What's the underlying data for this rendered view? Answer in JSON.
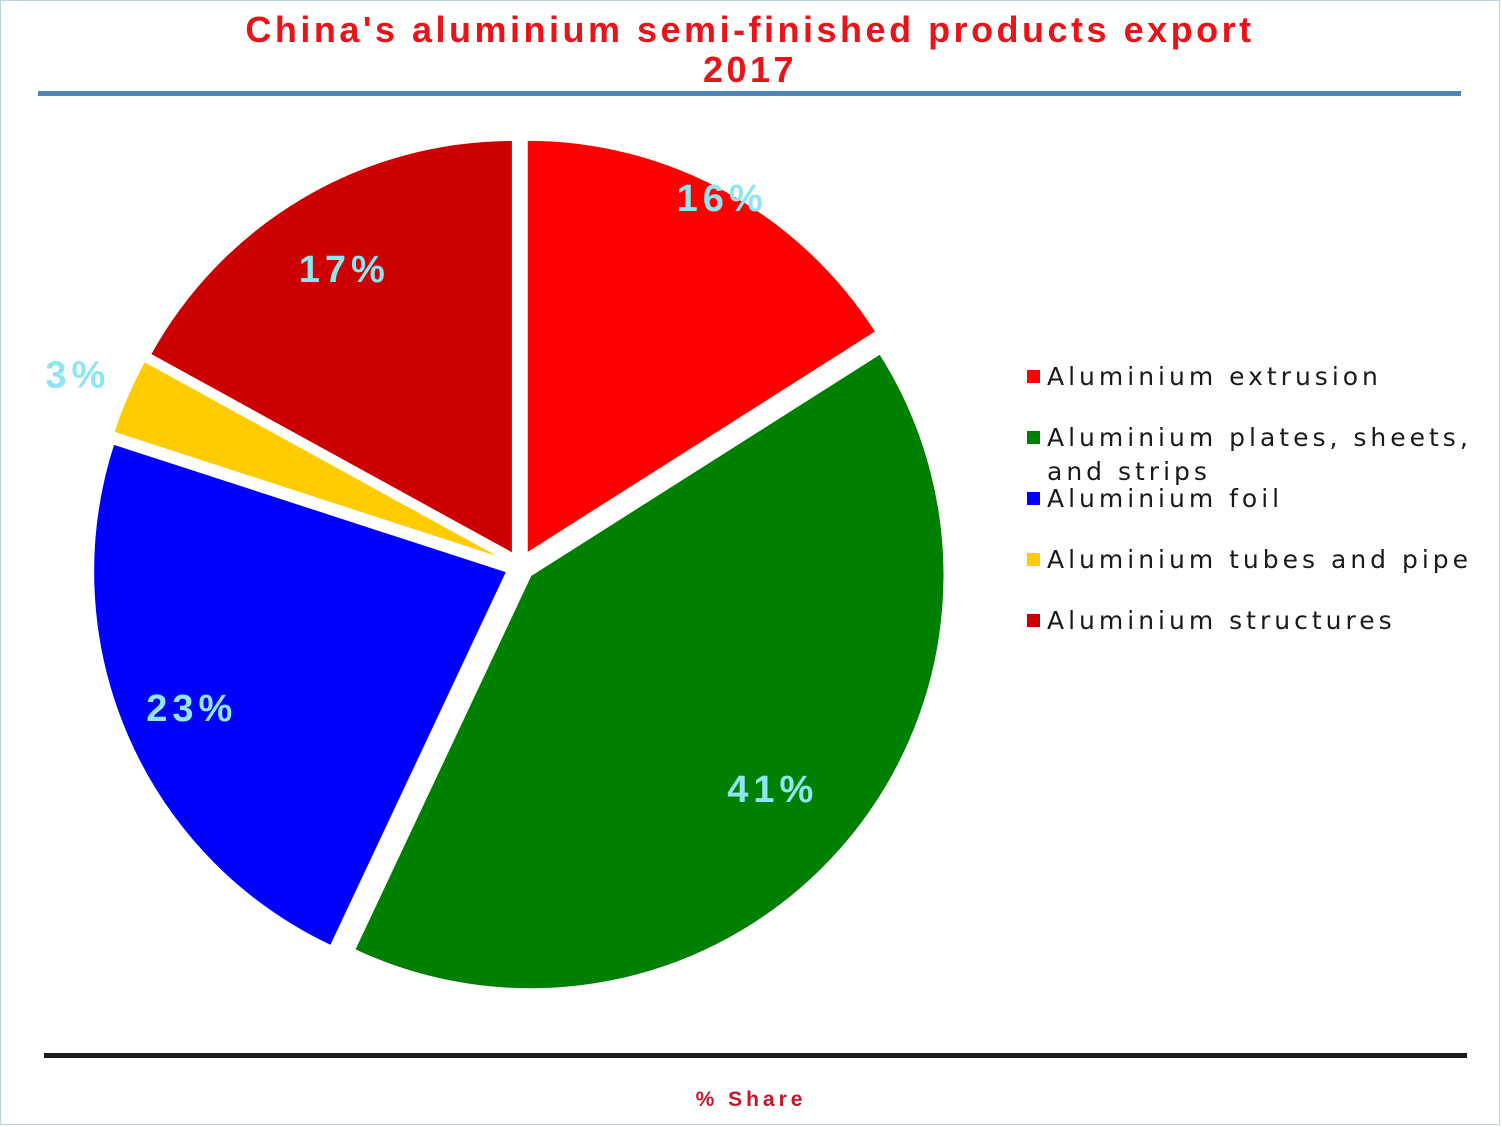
{
  "chart_data": {
    "type": "pie",
    "title": "China's aluminium semi-finished products export 2017",
    "title_lines": [
      "China's aluminium semi-finished products export",
      "2017"
    ],
    "footer": "% Share",
    "legend_position": "right",
    "exploded": true,
    "slices": [
      {
        "name": "Aluminium extrusion",
        "value": 16,
        "label": "16%",
        "color": "#ff0000"
      },
      {
        "name": "Aluminium plates, sheets, and strips",
        "value": 41,
        "label": "41%",
        "color": "#008000"
      },
      {
        "name": "Aluminium foil",
        "value": 23,
        "label": "23%",
        "color": "#0000ff"
      },
      {
        "name": "Aluminium tubes and pipe",
        "value": 3,
        "label": "3%",
        "color": "#ffcc00"
      },
      {
        "name": "Aluminium structures",
        "value": 17,
        "label": "17%",
        "color": "#cc0000"
      }
    ]
  },
  "colors": {
    "title": "#e8141a",
    "slice_label": "#8ee6f0",
    "top_rule": "#4f81bd",
    "bottom_rule": "#1a1a1a",
    "footer": "#c0182a"
  }
}
